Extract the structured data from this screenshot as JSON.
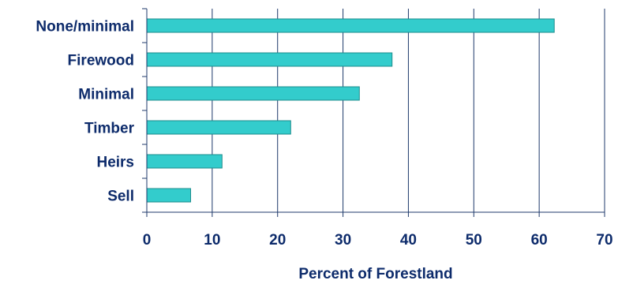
{
  "chart_data": {
    "type": "bar",
    "orientation": "horizontal",
    "categories": [
      "None/minimal",
      "Firewood",
      "Minimal",
      "Timber",
      "Heirs",
      "Sell"
    ],
    "values": [
      62.3,
      37.5,
      32.5,
      22.0,
      11.5,
      6.7
    ],
    "xlabel": "Percent of Forestland",
    "ylabel": "",
    "xlim": [
      0,
      70
    ],
    "xticks": [
      "0",
      "10",
      "20",
      "30",
      "40",
      "50",
      "60",
      "70"
    ],
    "grid": "vertical",
    "colors": {
      "bar_fill": "#33CCCC",
      "bar_stroke": "#1E8C8C",
      "text": "#0D2B6B",
      "grid": "#1F3A6B",
      "axis": "#1F3A6B"
    }
  }
}
